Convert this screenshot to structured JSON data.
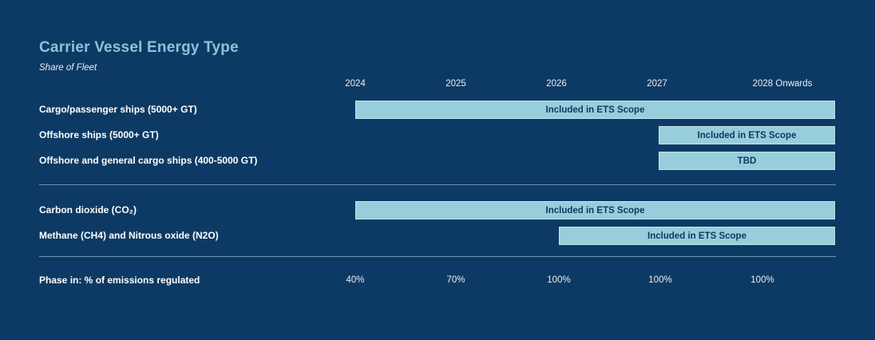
{
  "page": {
    "background_color": "#0d3a64",
    "accent_light_blue": "#8cc3da",
    "text_color": "#ffffff"
  },
  "header": {
    "title": "Carrier Vessel Energy Type",
    "subtitle": "Share of Fleet"
  },
  "chart_data": {
    "type": "timeline-bar",
    "columns": [
      "2024",
      "2025",
      "2026",
      "2027",
      "2028 Onwards"
    ],
    "rows": [
      {
        "label": "Cargo/passenger ships (5000+ GT)",
        "bar_label": "Included in ETS Scope",
        "start": "2024",
        "end": "2028 Onwards",
        "group": "vessels"
      },
      {
        "label": "Offshore ships (5000+ GT)",
        "bar_label": "Included in ETS Scope",
        "start": "2027",
        "end": "2028 Onwards",
        "group": "vessels"
      },
      {
        "label": "Offshore and general cargo ships (400-5000 GT)",
        "bar_label": "TBD",
        "start": "2027",
        "end": "2028 Onwards",
        "group": "vessels"
      },
      {
        "label": "Carbon dioxide (CO₂)",
        "bar_label": "Included in ETS Scope",
        "start": "2024",
        "end": "2028 Onwards",
        "group": "greenhouse-gases"
      },
      {
        "label": "Methane (CH4) and Nitrous oxide (N2O)",
        "bar_label": "Included in ETS Scope",
        "start": "2026",
        "end": "2028 Onwards",
        "group": "greenhouse-gases"
      }
    ],
    "phase_in": {
      "label": "Phase in: % of emissions regulated",
      "values": [
        "40%",
        "70%",
        "100%",
        "100%",
        "100%"
      ]
    },
    "layout_hints": {
      "legend": "none",
      "grid": "off",
      "bar_fill": "#98cedb",
      "bar_border": "#c0e4ec",
      "bar_text_color": "#0d3a64",
      "divider_color": "#a4c3d7"
    }
  }
}
